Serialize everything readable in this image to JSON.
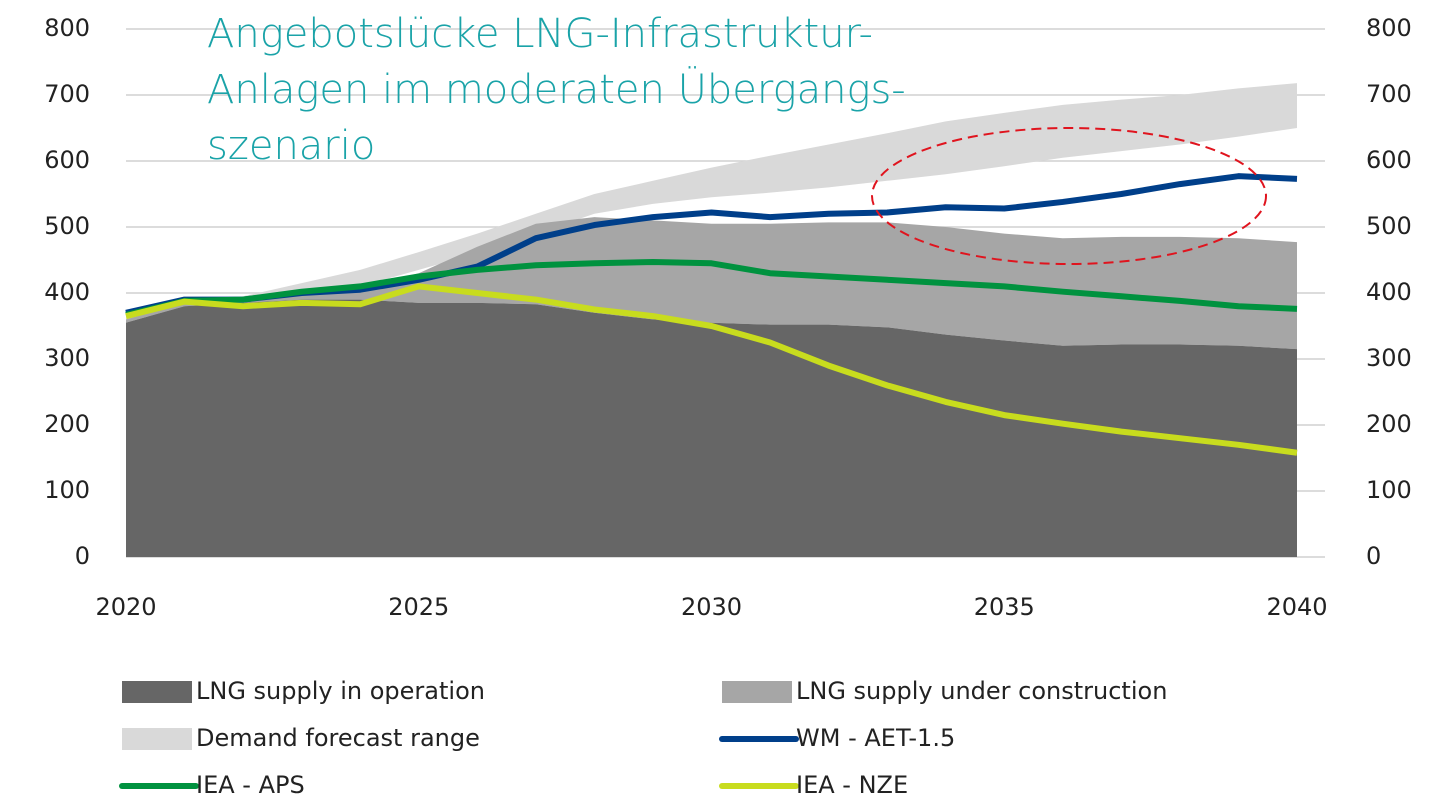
{
  "chart_data": {
    "type": "area-line",
    "title_lines": [
      "Angebotslücke LNG-Infrastruktur-",
      "Anlagen im moderaten Übergangs-",
      "szenario"
    ],
    "title_color": "#1aa3a8",
    "x": [
      2020,
      2021,
      2022,
      2023,
      2024,
      2025,
      2026,
      2027,
      2028,
      2029,
      2030,
      2031,
      2032,
      2033,
      2034,
      2035,
      2036,
      2037,
      2038,
      2039,
      2040
    ],
    "xlim": [
      2020,
      2040
    ],
    "xticks": [
      2020,
      2025,
      2030,
      2035,
      2040
    ],
    "ylim": [
      0,
      800
    ],
    "yticks": [
      0,
      100,
      200,
      300,
      400,
      500,
      600,
      700,
      800
    ],
    "y2lim": [
      0,
      800
    ],
    "y2ticks": [
      0,
      100,
      200,
      300,
      400,
      500,
      600,
      700,
      800
    ],
    "grid": true,
    "series": [
      {
        "name": "LNG supply in operation",
        "kind": "stacked-area",
        "color": "#666666",
        "values": [
          355,
          380,
          385,
          390,
          390,
          385,
          385,
          383,
          370,
          360,
          355,
          352,
          352,
          348,
          337,
          328,
          320,
          322,
          322,
          320,
          315
        ]
      },
      {
        "name": "LNG supply under construction",
        "kind": "stacked-area",
        "color": "#a6a6a6",
        "values": [
          5,
          5,
          5,
          10,
          15,
          45,
          85,
          122,
          145,
          150,
          150,
          153,
          155,
          159,
          163,
          162,
          163,
          163,
          163,
          163,
          162
        ]
      },
      {
        "name": "Demand forecast range",
        "kind": "band",
        "color": "#d9d9d9",
        "low": [
          360,
          372,
          385,
          397,
          410,
          435,
          460,
          490,
          520,
          535,
          545,
          552,
          560,
          570,
          580,
          592,
          605,
          615,
          625,
          637,
          650
        ],
        "high": [
          365,
          380,
          395,
          415,
          435,
          462,
          490,
          520,
          550,
          570,
          590,
          608,
          625,
          642,
          660,
          673,
          685,
          693,
          700,
          710,
          718
        ]
      },
      {
        "name": "WM - AET-1.5",
        "kind": "line",
        "color": "#003f8a",
        "values": [
          370,
          390,
          390,
          400,
          405,
          420,
          440,
          483,
          503,
          515,
          522,
          515,
          520,
          522,
          530,
          528,
          538,
          550,
          565,
          577,
          573
        ]
      },
      {
        "name": "IEA - APS",
        "kind": "line",
        "color": "#00923f",
        "values": [
          367,
          388,
          390,
          402,
          410,
          425,
          435,
          442,
          445,
          447,
          445,
          430,
          425,
          420,
          415,
          410,
          402,
          395,
          388,
          380,
          376
        ]
      },
      {
        "name": "IEA - NZE",
        "kind": "line",
        "color": "#c8dc1e",
        "values": [
          365,
          387,
          380,
          385,
          383,
          410,
          400,
          390,
          375,
          365,
          350,
          325,
          290,
          260,
          235,
          215,
          202,
          190,
          180,
          170,
          158
        ]
      }
    ]
  }
}
